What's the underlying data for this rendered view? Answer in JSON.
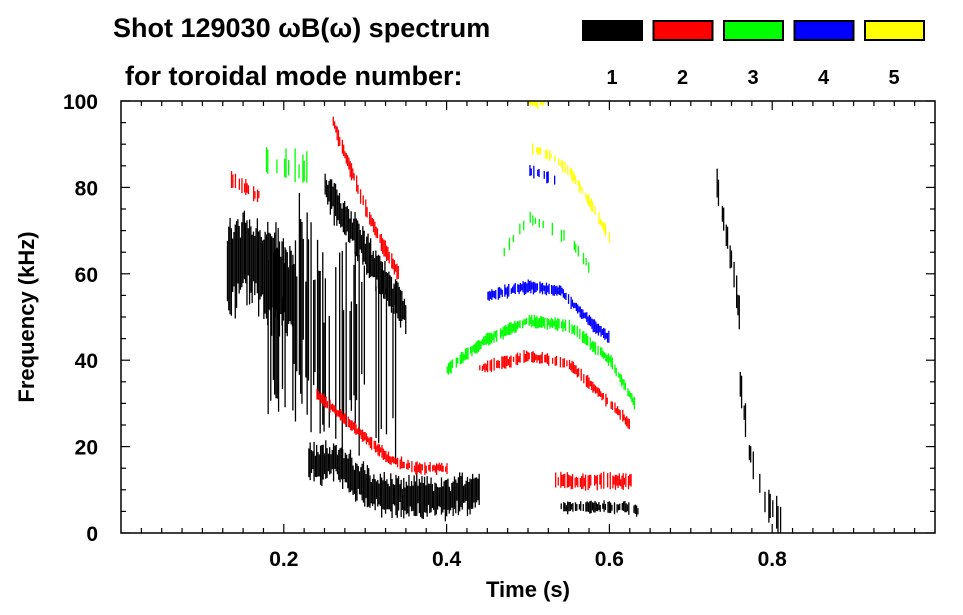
{
  "chart_data": {
    "type": "heatmap",
    "title_line1": "Shot 129030 ωB(ω) spectrum",
    "title_line2": "for toroidal mode number:",
    "xlabel": "Time (s)",
    "ylabel": "Frequency (kHz)",
    "xlim": [
      0,
      1.0
    ],
    "ylim": [
      0,
      100
    ],
    "xticks": [
      0.2,
      0.4,
      0.6,
      0.8
    ],
    "xtick_labels": [
      "0.2",
      "0.4",
      "0.6",
      "0.8"
    ],
    "yticks": [
      0,
      20,
      40,
      60,
      80,
      100
    ],
    "ytick_labels": [
      "0",
      "20",
      "40",
      "60",
      "80",
      "100"
    ],
    "legend_placement": "top-right",
    "series": [
      {
        "name": "1",
        "color": "#000000",
        "ridges": [
          {
            "t": [
              0.13,
              0.15,
              0.17,
              0.19,
              0.21
            ],
            "f": [
              60,
              65,
              62,
              58,
              55
            ],
            "width": 12,
            "density": 1.0
          },
          {
            "t": [
              0.25,
              0.27,
              0.29,
              0.31,
              0.33,
              0.35
            ],
            "f": [
              80,
              74,
              68,
              62,
              56,
              50
            ],
            "width": 5,
            "density": 1.0
          },
          {
            "t": [
              0.23,
              0.26,
              0.29,
              0.32,
              0.36,
              0.4,
              0.44
            ],
            "f": [
              16,
              17,
              12,
              9,
              8,
              8,
              10
            ],
            "width": 5,
            "density": 1.0
          },
          {
            "t": [
              0.18,
              0.2,
              0.22,
              0.25,
              0.28,
              0.31,
              0.34
            ],
            "f": [
              50,
              45,
              55,
              40,
              45,
              42,
              40
            ],
            "width": 25,
            "density": 0.5
          },
          {
            "t": [
              0.54,
              0.58,
              0.62,
              0.635
            ],
            "f": [
              6,
              6,
              6,
              5
            ],
            "width": 1.5,
            "density": 0.8
          },
          {
            "t": [
              0.73,
              0.74,
              0.75,
              0.76
            ],
            "f": [
              82,
              72,
              62,
              50
            ],
            "width": 4,
            "density": 0.7
          },
          {
            "t": [
              0.76,
              0.77,
              0.79,
              0.81
            ],
            "f": [
              35,
              20,
              8,
              3
            ],
            "width": 4,
            "density": 0.5
          }
        ]
      },
      {
        "name": "2",
        "color": "#ff0000",
        "ridges": [
          {
            "t": [
              0.135,
              0.15,
              0.17
            ],
            "f": [
              82,
              80,
              78
            ],
            "width": 2,
            "density": 0.7
          },
          {
            "t": [
              0.26,
              0.28,
              0.3,
              0.32,
              0.34
            ],
            "f": [
              95,
              85,
              75,
              67,
              60
            ],
            "width": 2,
            "density": 0.9
          },
          {
            "t": [
              0.24,
              0.27,
              0.3,
              0.33,
              0.36,
              0.4
            ],
            "f": [
              32,
              27,
              22,
              17,
              15,
              15
            ],
            "width": 1.5,
            "density": 0.9
          },
          {
            "t": [
              0.44,
              0.5,
              0.55,
              0.6,
              0.625
            ],
            "f": [
              38,
              41,
              39,
              30,
              25
            ],
            "width": 1.5,
            "density": 0.8
          },
          {
            "t": [
              0.53,
              0.57,
              0.61,
              0.63
            ],
            "f": [
              12,
              12,
              12,
              12
            ],
            "width": 2,
            "density": 0.7
          }
        ]
      },
      {
        "name": "3",
        "color": "#00ff00",
        "ridges": [
          {
            "t": [
              0.17,
              0.2,
              0.23
            ],
            "f": [
              86,
              85,
              84
            ],
            "width": 4,
            "density": 0.3
          },
          {
            "t": [
              0.4,
              0.45,
              0.5,
              0.55,
              0.6,
              0.63
            ],
            "f": [
              38,
              45,
              49,
              48,
              40,
              30
            ],
            "width": 1.5,
            "density": 0.9
          },
          {
            "t": [
              0.47,
              0.5,
              0.55,
              0.58
            ],
            "f": [
              65,
              73,
              68,
              60
            ],
            "width": 1.5,
            "density": 0.3
          }
        ]
      },
      {
        "name": "4",
        "color": "#0000ff",
        "ridges": [
          {
            "t": [
              0.45,
              0.5,
              0.54,
              0.58,
              0.6
            ],
            "f": [
              55,
              57,
              56,
              48,
              45
            ],
            "width": 1.5,
            "density": 0.9
          },
          {
            "t": [
              0.5,
              0.53,
              0.56
            ],
            "f": [
              84,
              82,
              78
            ],
            "width": 1.5,
            "density": 0.3
          }
        ]
      },
      {
        "name": "5",
        "color": "#ffff00",
        "ridges": [
          {
            "t": [
              0.505,
              0.52,
              0.55,
              0.58,
              0.6
            ],
            "f": [
              89,
              88,
              84,
              75,
              68
            ],
            "width": 1.5,
            "density": 0.6
          },
          {
            "t": [
              0.5,
              0.51,
              0.52
            ],
            "f": [
              100,
              99,
              100
            ],
            "width": 1,
            "density": 0.8
          }
        ]
      }
    ]
  }
}
